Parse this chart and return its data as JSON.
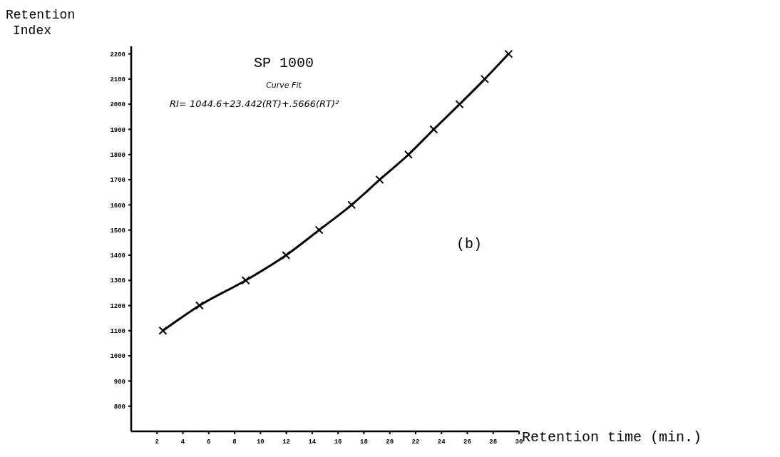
{
  "chart_data": {
    "type": "line",
    "title": "SP 1000",
    "xlabel": "Retention time (min.)",
    "ylabel": "Retention\nIndex",
    "annotations": [
      "Curve Fit",
      "RI= 1044.6+23.442(RT)+.5666(RT)²",
      "(b)"
    ],
    "x": [
      2.45,
      5.29,
      8.86,
      11.98,
      14.54,
      17.05,
      19.22,
      21.45,
      23.4,
      25.4,
      27.35,
      29.19
    ],
    "series": [
      {
        "color": "#000000",
        "values": [
          1100,
          1200,
          1300,
          1400,
          1500,
          1600,
          1700,
          1800,
          1900,
          2000,
          2100,
          2200
        ]
      }
    ],
    "marker": "cross",
    "line_style": "solid",
    "grid": false,
    "xlim": [
      0,
      30
    ],
    "xticks": [
      2,
      4,
      6,
      8,
      10,
      12,
      14,
      16,
      18,
      20,
      22,
      24,
      26,
      28,
      30
    ],
    "ylim": [
      700,
      2230
    ],
    "yticks": [
      800,
      900,
      1000,
      1100,
      1200,
      1300,
      1400,
      1500,
      1600,
      1700,
      1800,
      1900,
      2000,
      2100,
      2200
    ]
  }
}
